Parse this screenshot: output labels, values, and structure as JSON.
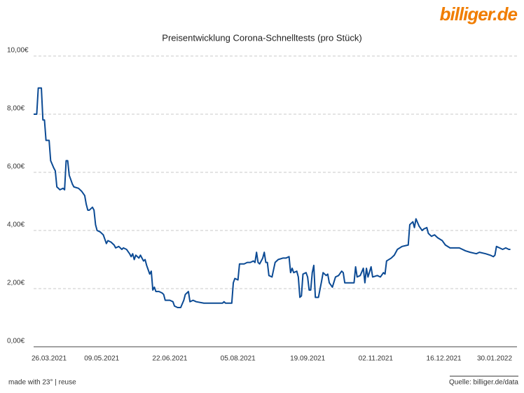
{
  "branding": {
    "logo": "billiger.de"
  },
  "footer": {
    "left": "made with 23° | reuse",
    "right": "Quelle: billiger.de/data"
  },
  "chart_data": {
    "type": "line",
    "title": "Preisentwicklung Corona-Schnelltests (pro Stück)",
    "x": [
      "2021-03-26",
      "2021-03-28",
      "2021-03-29",
      "2021-03-31",
      "2021-04-01",
      "2021-04-02",
      "2021-04-03",
      "2021-04-05",
      "2021-04-06",
      "2021-04-08",
      "2021-04-09",
      "2021-04-10",
      "2021-04-12",
      "2021-04-14",
      "2021-04-15",
      "2021-04-16",
      "2021-04-17",
      "2021-04-18",
      "2021-04-20",
      "2021-04-21",
      "2021-04-24",
      "2021-04-26",
      "2021-04-28",
      "2021-04-29",
      "2021-04-30",
      "2021-05-01",
      "2021-05-03",
      "2021-05-04",
      "2021-05-05",
      "2021-05-06",
      "2021-05-08",
      "2021-05-10",
      "2021-05-11",
      "2021-05-12",
      "2021-05-13",
      "2021-05-15",
      "2021-05-17",
      "2021-05-18",
      "2021-05-20",
      "2021-05-22",
      "2021-05-23",
      "2021-05-25",
      "2021-05-27",
      "2021-05-28",
      "2021-05-29",
      "2021-05-30",
      "2021-05-31",
      "2021-06-02",
      "2021-06-03",
      "2021-06-05",
      "2021-06-06",
      "2021-06-07",
      "2021-06-08",
      "2021-06-09",
      "2021-06-10",
      "2021-06-11",
      "2021-06-12",
      "2021-06-13",
      "2021-06-15",
      "2021-06-17",
      "2021-06-18",
      "2021-06-19",
      "2021-06-22",
      "2021-06-24",
      "2021-06-25",
      "2021-06-27",
      "2021-06-29",
      "2021-07-01",
      "2021-07-02",
      "2021-07-04",
      "2021-07-05",
      "2021-07-07",
      "2021-07-09",
      "2021-07-14",
      "2021-07-20",
      "2021-07-26",
      "2021-07-27",
      "2021-07-28",
      "2021-08-01",
      "2021-08-02",
      "2021-08-03",
      "2021-08-05",
      "2021-08-06",
      "2021-08-09",
      "2021-08-11",
      "2021-08-13",
      "2021-08-15",
      "2021-08-16",
      "2021-08-17",
      "2021-08-18",
      "2021-08-19",
      "2021-08-21",
      "2021-08-22",
      "2021-08-23",
      "2021-08-24",
      "2021-08-25",
      "2021-08-27",
      "2021-08-29",
      "2021-08-31",
      "2021-09-03",
      "2021-09-05",
      "2021-09-07",
      "2021-09-08",
      "2021-09-09",
      "2021-09-10",
      "2021-09-12",
      "2021-09-13",
      "2021-09-14",
      "2021-09-15",
      "2021-09-16",
      "2021-09-18",
      "2021-09-19",
      "2021-09-20",
      "2021-09-21",
      "2021-09-22",
      "2021-09-23",
      "2021-09-24",
      "2021-09-26",
      "2021-09-28",
      "2021-09-29",
      "2021-10-01",
      "2021-10-02",
      "2021-10-03",
      "2021-10-05",
      "2021-10-07",
      "2021-10-09",
      "2021-10-11",
      "2021-10-12",
      "2021-10-13",
      "2021-10-19",
      "2021-10-20",
      "2021-10-21",
      "2021-10-23",
      "2021-10-25",
      "2021-10-26",
      "2021-10-27",
      "2021-10-28",
      "2021-10-30",
      "2021-10-31",
      "2021-11-03",
      "2021-11-05",
      "2021-11-07",
      "2021-11-08",
      "2021-11-09",
      "2021-11-12",
      "2021-11-14",
      "2021-11-16",
      "2021-11-19",
      "2021-11-23",
      "2021-11-24",
      "2021-11-26",
      "2021-11-27",
      "2021-11-28",
      "2021-11-30",
      "2021-12-02",
      "2021-12-03",
      "2021-12-05",
      "2021-12-06",
      "2021-12-08",
      "2021-12-10",
      "2021-12-12",
      "2021-12-15",
      "2021-12-17",
      "2021-12-20",
      "2021-12-26",
      "2021-12-30",
      "2022-01-02",
      "2022-01-06",
      "2022-01-08",
      "2022-01-12",
      "2022-01-15",
      "2022-01-17",
      "2022-01-18",
      "2022-01-19",
      "2022-01-21",
      "2022-01-23",
      "2022-01-25",
      "2022-01-27",
      "2022-01-28"
    ],
    "series": [
      {
        "name": "Preis",
        "color": "#0b4a94",
        "values": [
          8.0,
          8.0,
          8.9,
          8.9,
          7.8,
          7.8,
          7.1,
          7.1,
          6.4,
          6.15,
          6.05,
          5.5,
          5.4,
          5.45,
          5.4,
          6.4,
          6.4,
          5.9,
          5.6,
          5.5,
          5.45,
          5.35,
          5.2,
          4.9,
          4.7,
          4.7,
          4.8,
          4.7,
          4.2,
          4.0,
          3.95,
          3.85,
          3.7,
          3.55,
          3.65,
          3.6,
          3.5,
          3.4,
          3.45,
          3.35,
          3.4,
          3.35,
          3.2,
          3.1,
          3.2,
          3.0,
          3.15,
          3.05,
          3.15,
          2.95,
          3.0,
          2.8,
          2.65,
          2.5,
          2.6,
          1.95,
          2.05,
          1.9,
          1.9,
          1.85,
          1.8,
          1.6,
          1.6,
          1.55,
          1.4,
          1.35,
          1.35,
          1.6,
          1.8,
          1.9,
          1.55,
          1.6,
          1.55,
          1.5,
          1.5,
          1.5,
          1.55,
          1.5,
          1.5,
          2.2,
          2.35,
          2.3,
          2.85,
          2.85,
          2.9,
          2.9,
          2.95,
          2.9,
          3.25,
          2.9,
          2.85,
          3.05,
          3.25,
          2.9,
          2.9,
          2.45,
          2.4,
          2.9,
          3.0,
          3.05,
          3.05,
          3.1,
          2.55,
          2.7,
          2.55,
          2.6,
          2.4,
          1.7,
          1.75,
          2.5,
          2.55,
          2.4,
          1.95,
          1.95,
          2.55,
          2.8,
          1.7,
          1.7,
          2.25,
          2.55,
          2.45,
          2.5,
          2.2,
          2.05,
          2.4,
          2.45,
          2.6,
          2.55,
          2.2,
          2.2,
          2.75,
          2.4,
          2.45,
          2.7,
          2.2,
          2.7,
          2.4,
          2.75,
          2.4,
          2.45,
          2.4,
          2.55,
          2.5,
          2.95,
          3.05,
          3.15,
          3.35,
          3.45,
          3.5,
          4.2,
          4.3,
          4.1,
          4.4,
          4.15,
          4.0,
          4.05,
          4.1,
          3.9,
          3.8,
          3.85,
          3.75,
          3.65,
          3.5,
          3.4,
          3.4,
          3.3,
          3.25,
          3.2,
          3.25,
          3.2,
          3.15,
          3.1,
          3.15,
          3.45,
          3.4,
          3.35,
          3.4,
          3.35,
          3.35
        ]
      }
    ],
    "xlim": [
      "2021-03-26",
      "2022-01-30"
    ],
    "xticks": [
      {
        "value": "2021-03-26",
        "label": "26.03.2021"
      },
      {
        "value": "2021-05-09",
        "label": "09.05.2021"
      },
      {
        "value": "2021-06-22",
        "label": "22.06.2021"
      },
      {
        "value": "2021-08-05",
        "label": "05.08.2021"
      },
      {
        "value": "2021-09-19",
        "label": "19.09.2021"
      },
      {
        "value": "2021-11-02",
        "label": "02.11.2021"
      },
      {
        "value": "2021-12-16",
        "label": "16.12.2021"
      },
      {
        "value": "2022-01-30",
        "label": "30.01.2022"
      }
    ],
    "ylim": [
      0,
      10
    ],
    "yticks": [
      {
        "value": 0,
        "label": "0,00€"
      },
      {
        "value": 2,
        "label": "2,00€"
      },
      {
        "value": 4,
        "label": "4,00€"
      },
      {
        "value": 6,
        "label": "6,00€"
      },
      {
        "value": 8,
        "label": "8,00€"
      },
      {
        "value": 10,
        "label": "10,00€"
      }
    ],
    "grid": true
  }
}
